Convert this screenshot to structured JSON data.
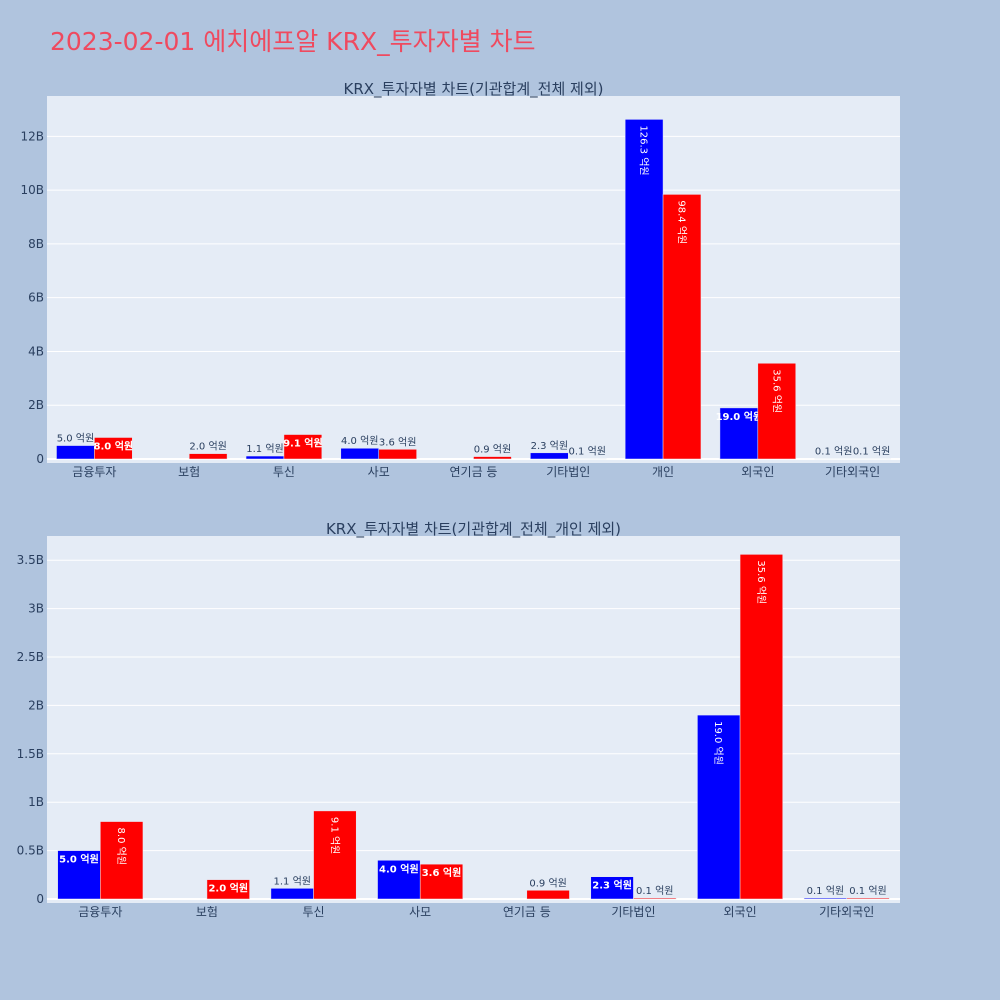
{
  "page": {
    "title": "2023-02-01 에치에프알 KRX_투자자별 차트",
    "title_color": "#ef4a5f",
    "background": "#b0c4de"
  },
  "colors": {
    "series_a": "#0000ff",
    "series_b": "#ff0000",
    "plot_bg": "#e5ecf6",
    "grid": "#ffffff",
    "text": "#2a3f5f"
  },
  "chart_data": [
    {
      "type": "bar",
      "title": "KRX_투자자별 차트(기관합계_전체 제외)",
      "categories": [
        "금융투자",
        "보험",
        "투신",
        "사모",
        "연기금 등",
        "기타법인",
        "개인",
        "외국인",
        "기타외국인"
      ],
      "yticks": [
        0,
        2000000000,
        4000000000,
        6000000000,
        8000000000,
        10000000000,
        12000000000
      ],
      "ytick_labels": [
        "0",
        "2B",
        "4B",
        "6B",
        "8B",
        "10B",
        "12B"
      ],
      "ylim": [
        0,
        13500000000
      ],
      "grid": true,
      "series": [
        {
          "color": "#0000ff",
          "values": [
            500000000,
            0,
            110000000,
            400000000,
            0,
            230000000,
            12630000000,
            1900000000,
            10000000
          ],
          "labels": [
            "5.0 억원",
            "",
            "1.1 억원",
            "4.0 억원",
            "",
            "2.3 억원",
            "126.3 억원",
            "19.0 억원",
            "0.1 억원"
          ]
        },
        {
          "color": "#ff0000",
          "values": [
            800000000,
            200000000,
            910000000,
            360000000,
            90000000,
            10000000,
            9840000000,
            3560000000,
            10000000
          ],
          "labels": [
            "8.0 억원",
            "2.0 억원",
            "9.1 억원",
            "3.6 억원",
            "0.9 억원",
            "0.1 억원",
            "98.4 억원",
            "35.6 억원",
            "0.1 억원"
          ]
        }
      ]
    },
    {
      "type": "bar",
      "title": "KRX_투자자별 차트(기관합계_전체_개인 제외)",
      "categories": [
        "금융투자",
        "보험",
        "투신",
        "사모",
        "연기금 등",
        "기타법인",
        "외국인",
        "기타외국인"
      ],
      "yticks": [
        0,
        500000000,
        1000000000,
        1500000000,
        2000000000,
        2500000000,
        3000000000,
        3500000000
      ],
      "ytick_labels": [
        "0",
        "0.5B",
        "1B",
        "1.5B",
        "2B",
        "2.5B",
        "3B",
        "3.5B"
      ],
      "ylim": [
        0,
        3750000000
      ],
      "grid": true,
      "series": [
        {
          "color": "#0000ff",
          "values": [
            500000000,
            0,
            110000000,
            400000000,
            0,
            230000000,
            1900000000,
            10000000
          ],
          "labels": [
            "5.0 억원",
            "",
            "1.1 억원",
            "4.0 억원",
            "",
            "2.3 억원",
            "19.0 억원",
            "0.1 억원"
          ]
        },
        {
          "color": "#ff0000",
          "values": [
            800000000,
            200000000,
            910000000,
            360000000,
            90000000,
            10000000,
            3560000000,
            10000000
          ],
          "labels": [
            "8.0 억원",
            "2.0 억원",
            "9.1 억원",
            "3.6 억원",
            "0.9 억원",
            "0.1 억원",
            "35.6 억원",
            "0.1 억원"
          ]
        }
      ]
    }
  ]
}
